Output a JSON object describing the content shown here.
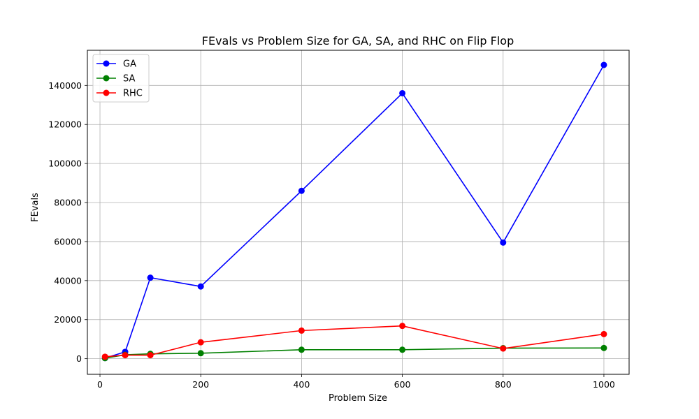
{
  "chart_data": {
    "type": "line",
    "title": "FEvals vs Problem Size for GA, SA, and RHC on Flip Flop",
    "xlabel": "Problem Size",
    "ylabel": "FEvals",
    "xlim": [
      -25,
      1050
    ],
    "ylim": [
      -8000,
      158000
    ],
    "xticks": [
      0,
      200,
      400,
      600,
      800,
      1000
    ],
    "yticks": [
      0,
      20000,
      40000,
      60000,
      80000,
      100000,
      120000,
      140000
    ],
    "grid": true,
    "legend_position": "top-left",
    "x": [
      10,
      50,
      100,
      200,
      400,
      600,
      800,
      1000
    ],
    "series": [
      {
        "name": "GA",
        "color": "#0000ff",
        "values": [
          300,
          3500,
          41500,
          37000,
          86000,
          136000,
          59500,
          150500
        ]
      },
      {
        "name": "SA",
        "color": "#008000",
        "values": [
          300,
          2000,
          2500,
          2800,
          4600,
          4600,
          5400,
          5500
        ]
      },
      {
        "name": "RHC",
        "color": "#ff0000",
        "values": [
          1000,
          1800,
          1800,
          8400,
          14400,
          16800,
          5200,
          12600
        ]
      }
    ]
  }
}
